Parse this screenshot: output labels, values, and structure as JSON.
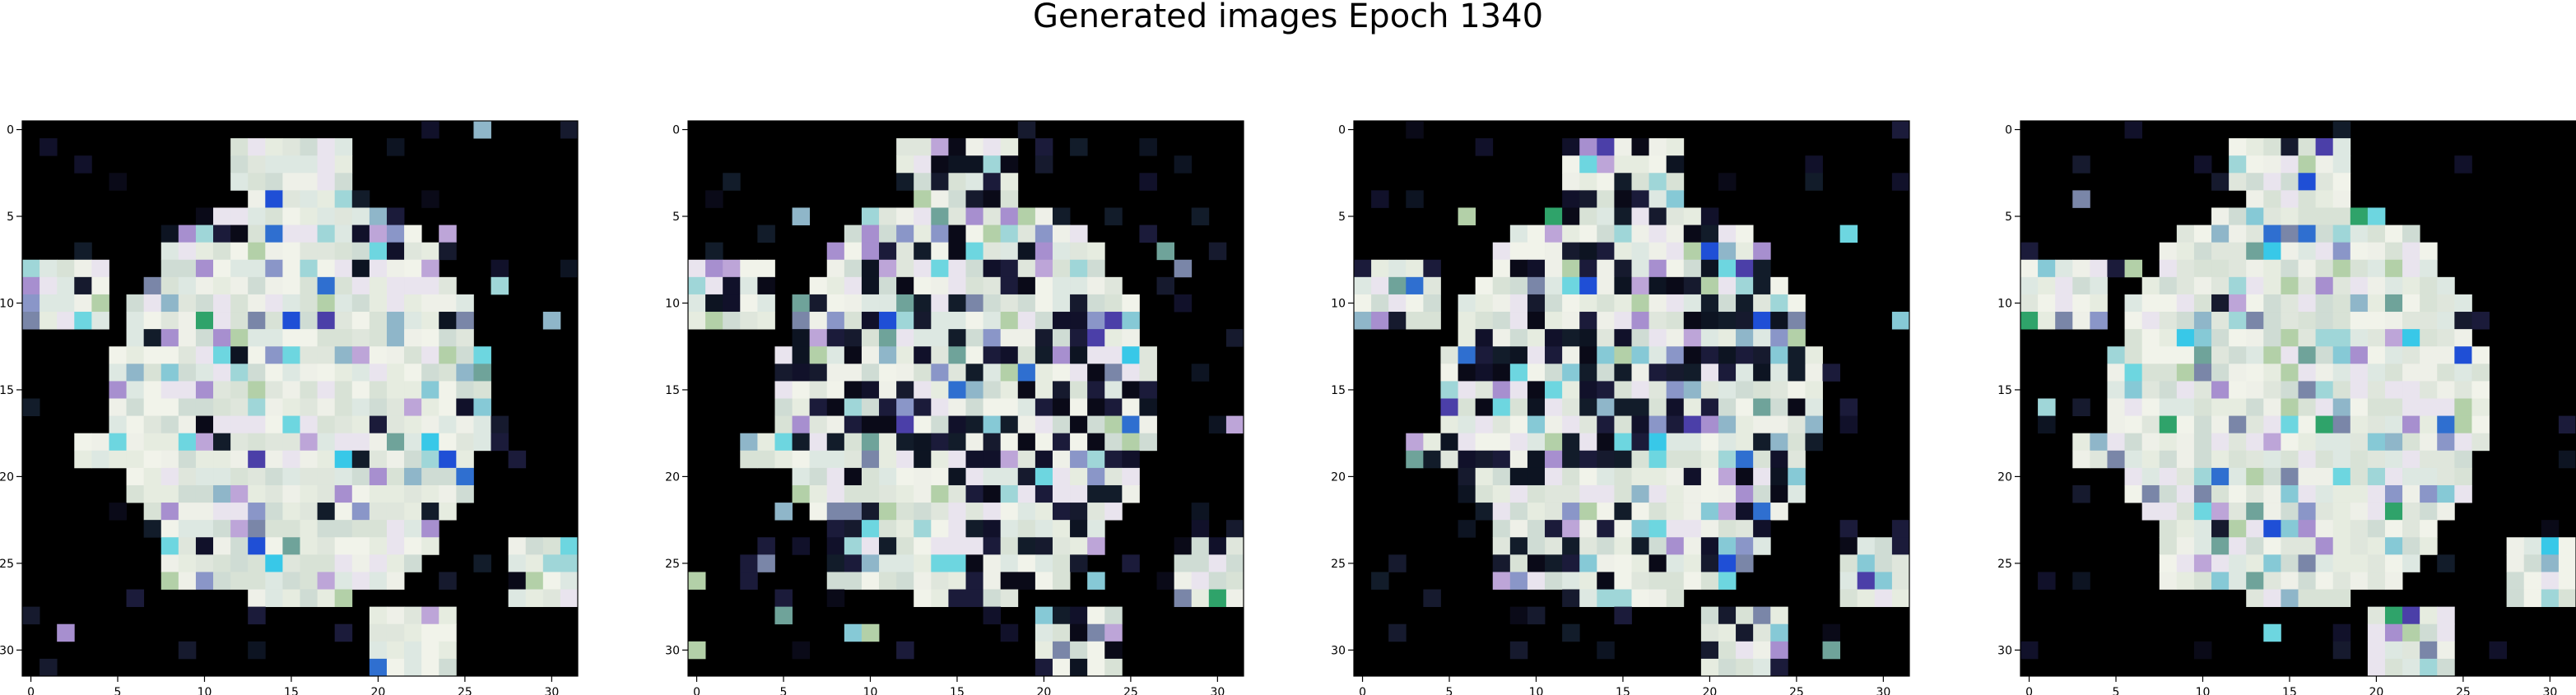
{
  "title": "Generated images Epoch 1340",
  "chart_data": [
    {
      "type": "heatmap",
      "panel": 1,
      "xlim": [
        -0.5,
        31.5
      ],
      "ylim": [
        31.5,
        -0.5
      ],
      "xticks": [
        0,
        5,
        10,
        15,
        20,
        25,
        30
      ],
      "yticks": [
        0,
        5,
        10,
        15,
        20,
        25,
        30
      ],
      "background": "#000000",
      "seed": 11,
      "pale_ratio": 0.78
    },
    {
      "type": "heatmap",
      "panel": 2,
      "xlim": [
        -0.5,
        31.5
      ],
      "ylim": [
        31.5,
        -0.5
      ],
      "xticks": [
        0,
        5,
        10,
        15,
        20,
        25,
        30
      ],
      "yticks": [
        0,
        5,
        10,
        15,
        20,
        25,
        30
      ],
      "background": "#000000",
      "seed": 23,
      "pale_ratio": 0.55
    },
    {
      "type": "heatmap",
      "panel": 3,
      "xlim": [
        -0.5,
        31.5
      ],
      "ylim": [
        31.5,
        -0.5
      ],
      "xticks": [
        0,
        5,
        10,
        15,
        20,
        25,
        30
      ],
      "yticks": [
        0,
        5,
        10,
        15,
        20,
        25,
        30
      ],
      "background": "#000000",
      "seed": 37,
      "pale_ratio": 0.55
    },
    {
      "type": "heatmap",
      "panel": 4,
      "xlim": [
        -0.5,
        31.5
      ],
      "ylim": [
        31.5,
        -0.5
      ],
      "xticks": [
        0,
        5,
        10,
        15,
        20,
        25,
        30
      ],
      "yticks": [
        0,
        5,
        10,
        15,
        20,
        25,
        30
      ],
      "background": "#000000",
      "seed": 41,
      "pale_ratio": 0.8
    }
  ],
  "palette": {
    "pale": [
      "#e6ece0",
      "#dfe6dc",
      "#eef0e8",
      "#d8e2d6",
      "#e9e4ee",
      "#cfdcd4",
      "#f1f3ea",
      "#dde8e2"
    ],
    "accent": [
      "#9fd6d8",
      "#86c9d6",
      "#a78fcf",
      "#8fb6c9",
      "#6fa39a",
      "#bda5d8",
      "#6dd6e0",
      "#8a96c8",
      "#b3d0a8",
      "#7a86a8"
    ],
    "dark": [
      "#0a0a18",
      "#11112a",
      "#161a2e",
      "#0d1422",
      "#1b1b3a",
      "#121c2a"
    ],
    "vivid": [
      "#1f4fd6",
      "#2f6fd0",
      "#38c8e8",
      "#4b3fa8",
      "#2fa36a"
    ]
  }
}
